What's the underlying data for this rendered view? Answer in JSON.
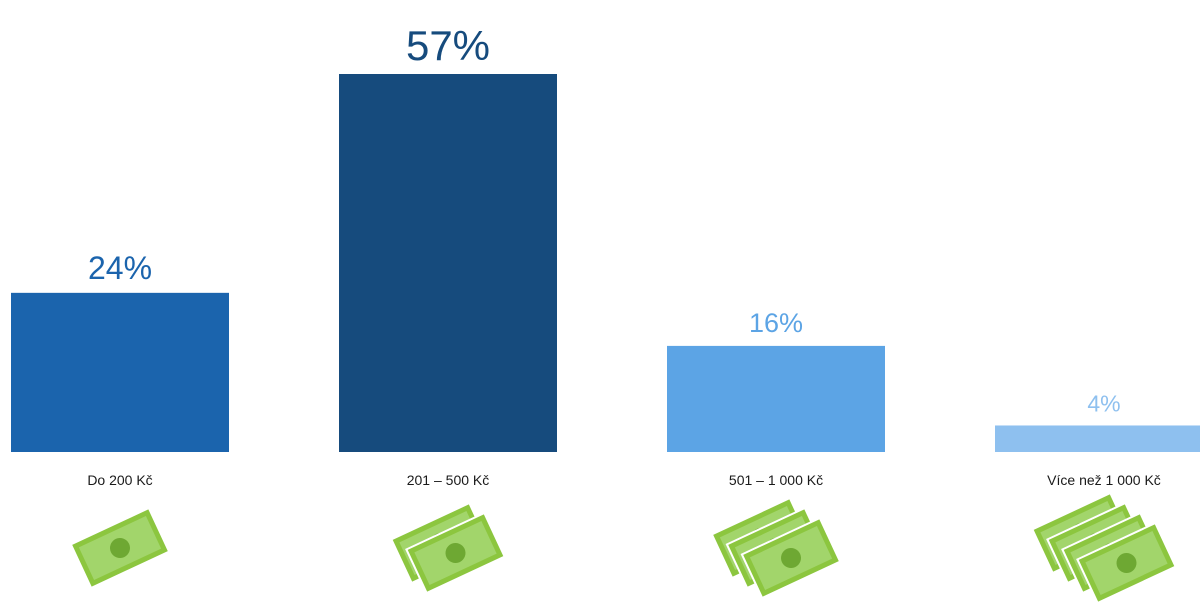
{
  "chart_data": {
    "type": "bar",
    "title": "",
    "xlabel": "",
    "ylabel": "",
    "categories": [
      "Do 200 Kč",
      "201 – 500 Kč",
      "501 – 1 000 Kč",
      "Více než 1 000 Kč"
    ],
    "values": [
      24,
      57,
      16,
      4
    ],
    "value_labels": [
      "24%",
      "57%",
      "16%",
      "4%"
    ],
    "ylim": [
      0,
      57
    ],
    "grid": false,
    "legend": "none",
    "bar_colors": [
      "#1b64ad",
      "#164b7d",
      "#5ca4e5",
      "#8ec0ef"
    ],
    "label_colors": [
      "#1b64ad",
      "#164b7d",
      "#5ca4e5",
      "#8ec0ef"
    ],
    "category_label_color": "#1a1a1a",
    "icons": [
      {
        "name": "banknote-icon",
        "count": 1
      },
      {
        "name": "banknote-icon",
        "count": 2
      },
      {
        "name": "banknote-icon",
        "count": 3
      },
      {
        "name": "banknote-icon",
        "count": 4
      }
    ],
    "icon_colors": {
      "note": "#8cc63f",
      "inner": "#a2d56b",
      "coin": "#6ea833"
    }
  }
}
